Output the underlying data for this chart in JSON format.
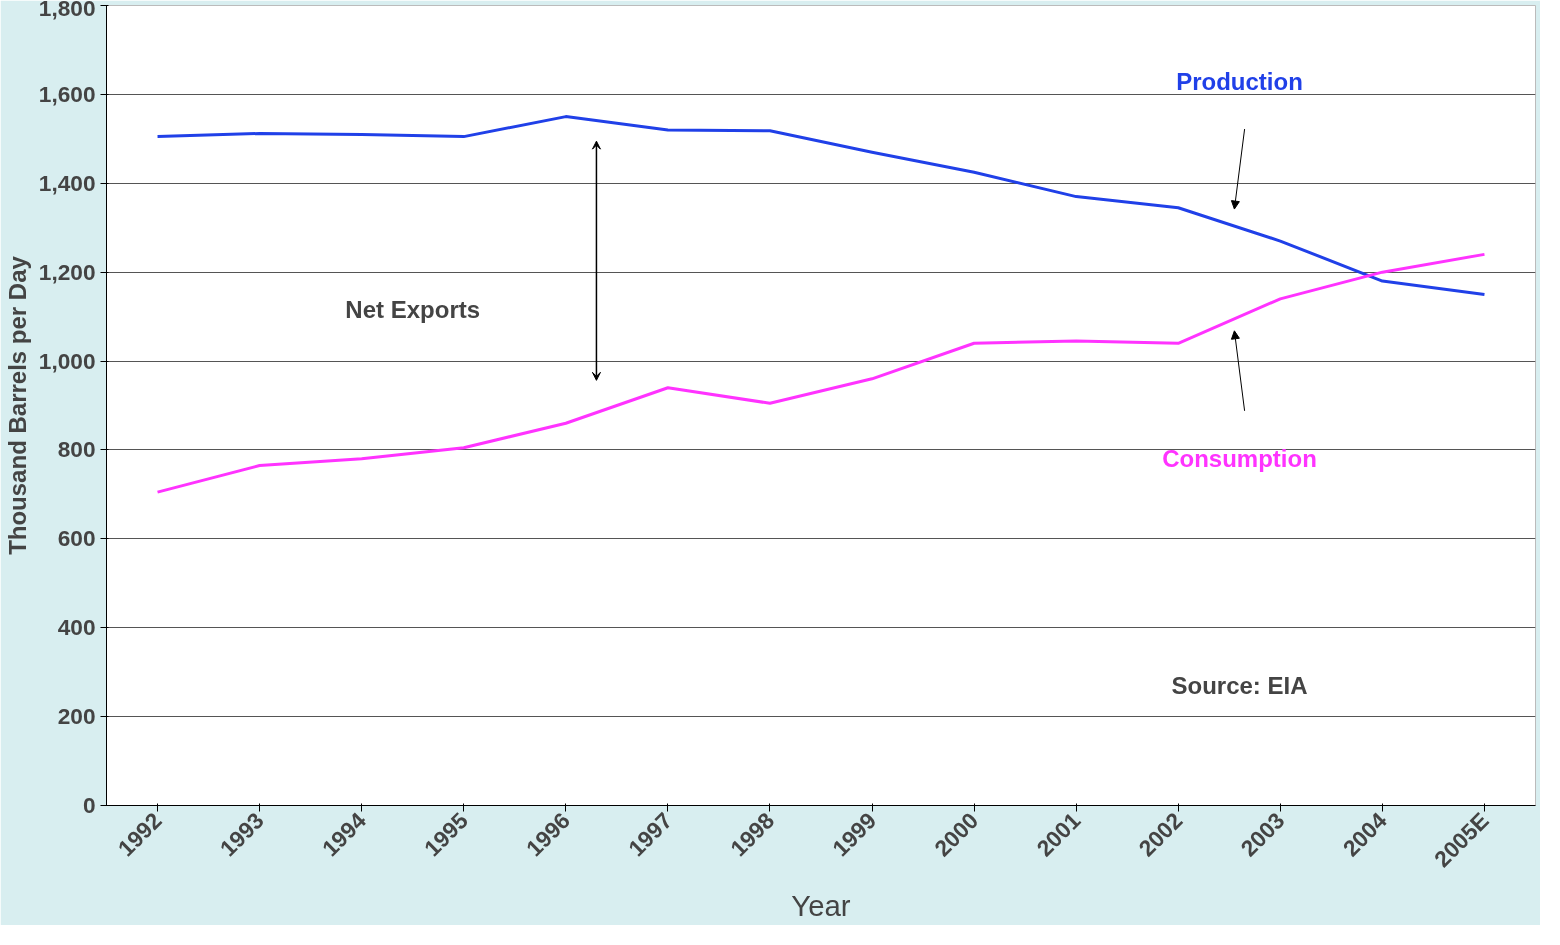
{
  "chart_data": {
    "type": "line",
    "xlabel": "Year",
    "ylabel": "Thousand Barrels per Day",
    "categories": [
      "1992",
      "1993",
      "1994",
      "1995",
      "1996",
      "1997",
      "1998",
      "1999",
      "2000",
      "2001",
      "2002",
      "2003",
      "2004",
      "2005E"
    ],
    "series": [
      {
        "name": "Production",
        "color": "#2040e8",
        "values": [
          1505,
          1512,
          1510,
          1505,
          1550,
          1520,
          1518,
          1470,
          1425,
          1370,
          1345,
          1270,
          1180,
          1150
        ]
      },
      {
        "name": "Consumption",
        "color": "#ff33ff",
        "values": [
          705,
          765,
          780,
          805,
          860,
          940,
          905,
          960,
          1040,
          1045,
          1040,
          1140,
          1200,
          1240
        ]
      }
    ],
    "ylim": [
      0,
      1800
    ],
    "yticks": [
      0,
      200,
      400,
      600,
      800,
      {
        "value": 1000,
        "label": "1,000"
      },
      {
        "value": 1200,
        "label": "1,200"
      },
      {
        "value": 1400,
        "label": "1,400"
      },
      {
        "value": 1600,
        "label": "1,600"
      },
      {
        "value": 1800,
        "label": "1,800"
      }
    ],
    "grid": "y",
    "marker": "none",
    "line_style": "solid",
    "legend": false,
    "annotations": [
      "Net Exports",
      "Source: EIA"
    ]
  }
}
